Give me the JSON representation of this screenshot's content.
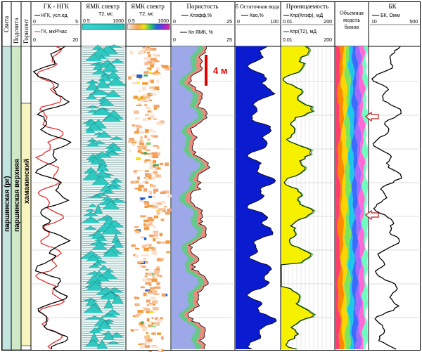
{
  "chart_data": {
    "type": "well-log",
    "zones": {
      "svita_header": "Свита",
      "podsvita_header": "Подсвита",
      "gorizont_header": "Горизонт",
      "svita": "паршинская (pr)",
      "podsvita": "паршинская верхняя",
      "gorizont": "хамакинский"
    },
    "tracks": [
      {
        "title": "ГК - НГК",
        "curves": [
          {
            "name": "НГК, усл.ед.",
            "color": "#000000",
            "range": [
              "0",
              "5"
            ]
          },
          {
            "name": "ГК, мкР/час",
            "color": "#e03030",
            "range": [
              "0",
              "20"
            ]
          }
        ]
      },
      {
        "title": "ЯМК спектр",
        "curves": [
          {
            "name": "T2, мс",
            "range": [
              "0.5",
              "1000"
            ]
          }
        ]
      },
      {
        "title": "ЯМК спектр",
        "curves": [
          {
            "name": "T2, мс",
            "range": [
              "0.5",
              "1000"
            ]
          }
        ]
      },
      {
        "title": "Пористость",
        "curves": [
          {
            "name": "Кпэфф,%",
            "color": "#000000",
            "range": [
              "0",
              "25"
            ]
          },
          {
            "name": "Кп ЯМК, %",
            "color": "#000000",
            "range": [
              "0",
              "25"
            ]
          }
        ]
      },
      {
        "title": "б Остаточная вода",
        "curves": [
          {
            "name": "Кво,%",
            "color": "#000000",
            "range": [
              "0",
              "100"
            ]
          }
        ]
      },
      {
        "title": "Проницаемость",
        "curves": [
          {
            "name": "Кпр(Кпэф), мД",
            "color": "#000000",
            "range": [
              "0.01",
              "200"
            ]
          },
          {
            "name": "Кпр(Т2), мД",
            "color": "#2a9a2a",
            "range": [
              "0.01",
              "200"
            ]
          }
        ]
      },
      {
        "title": "Объемная модель бинов",
        "curves": []
      },
      {
        "title": "БК",
        "curves": [
          {
            "name": "БК, Омм",
            "color": "#000000",
            "range": [
              "10",
              "500"
            ]
          }
        ]
      }
    ],
    "scale_label": "4 м",
    "colors": {
      "nmr_fill": "#2fc9c2",
      "residual_water": "#0a1bd0",
      "permeability_fill": "#f4f000",
      "porosity_fill": "#9ca8e8",
      "porosity_red": "#f08a7c",
      "porosity_green": "#66c98a",
      "scale_bar": "#e00000"
    }
  }
}
